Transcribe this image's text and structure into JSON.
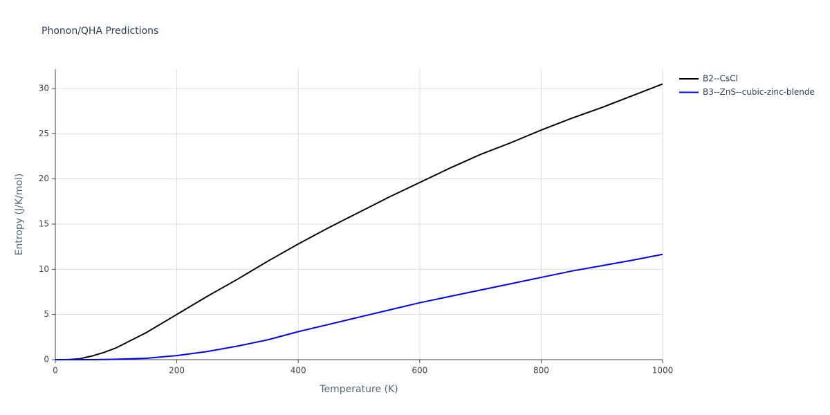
{
  "chart_data": {
    "type": "line",
    "title": "Phonon/QHA Predictions",
    "x_label": "Temperature (K)",
    "y_label": "Entropy (J/K/mol)",
    "x": [
      0,
      20,
      40,
      60,
      80,
      100,
      150,
      200,
      250,
      300,
      350,
      400,
      450,
      500,
      550,
      600,
      650,
      700,
      750,
      800,
      850,
      900,
      950,
      1000
    ],
    "series": [
      {
        "name": "B2--CsCl",
        "color": "#000000",
        "values": [
          0,
          0,
          0.1,
          0.4,
          0.8,
          1.3,
          3.0,
          5.0,
          7.0,
          8.9,
          10.9,
          12.8,
          14.6,
          16.3,
          18.0,
          19.6,
          21.2,
          22.7,
          24.0,
          25.4,
          26.7,
          27.9,
          29.2,
          30.5
        ]
      },
      {
        "name": "B3--ZnS--cubic-zinc-blende",
        "color": "#0000ff",
        "values": [
          0,
          0,
          0,
          0,
          0.02,
          0.05,
          0.15,
          0.45,
          0.9,
          1.5,
          2.2,
          3.1,
          3.9,
          4.7,
          5.5,
          6.3,
          7.0,
          7.7,
          8.4,
          9.1,
          9.8,
          10.4,
          11.0,
          11.65
        ]
      }
    ],
    "xlim": [
      0,
      1000
    ],
    "xticks": [
      0,
      200,
      400,
      600,
      800,
      1000
    ],
    "ylim": [
      0,
      32.14
    ],
    "yticks": [
      0,
      5,
      10,
      15,
      20,
      25,
      30
    ],
    "grid": true,
    "legend": "right"
  }
}
